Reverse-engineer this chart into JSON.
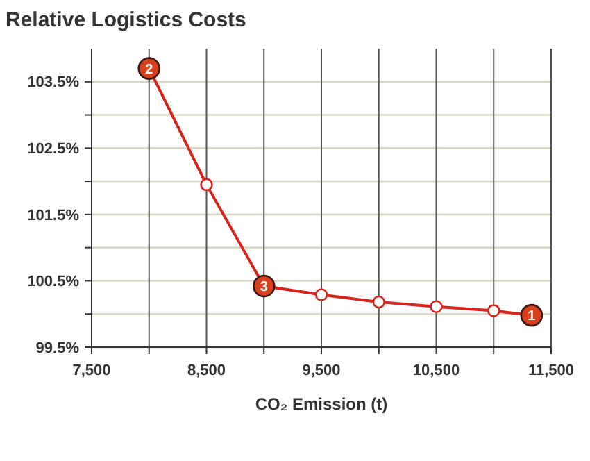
{
  "chart_data": {
    "type": "line",
    "title": "Relative Logistics Costs",
    "xlabel": "CO₂ Emission (t)",
    "x": [
      8000,
      8500,
      9000,
      9500,
      10000,
      10500,
      11000,
      11330
    ],
    "series": [
      {
        "color": "#d8231c",
        "values": [
          103.7,
          101.95,
          100.42,
          100.29,
          100.18,
          100.11,
          100.05,
          99.98
        ]
      }
    ],
    "xlim": [
      7500,
      11500
    ],
    "xticks": [
      {
        "value": 7500,
        "label": "7,500"
      },
      {
        "value": 8000,
        "label": null
      },
      {
        "value": 8500,
        "label": "8,500"
      },
      {
        "value": 9000,
        "label": null
      },
      {
        "value": 9500,
        "label": "9,500"
      },
      {
        "value": 10000,
        "label": null
      },
      {
        "value": 10500,
        "label": "10,500"
      },
      {
        "value": 11000,
        "label": null
      },
      {
        "value": 11500,
        "label": "11,500"
      }
    ],
    "ylim": [
      99.5,
      104
    ],
    "yticks": [
      {
        "value": 99.5,
        "label": "99.5%"
      },
      {
        "value": 100,
        "label": null
      },
      {
        "value": 100.5,
        "label": "100.5%"
      },
      {
        "value": 101,
        "label": null
      },
      {
        "value": 101.5,
        "label": "101.5%"
      },
      {
        "value": 102,
        "label": null
      },
      {
        "value": 102.5,
        "label": "102.5%"
      },
      {
        "value": 103,
        "label": null
      },
      {
        "value": 103.5,
        "label": "103.5%"
      }
    ],
    "grid": true,
    "marker": "circle",
    "line_style": "solid",
    "annotations": [
      {
        "text": "2",
        "x": 8000,
        "y": 103.7
      },
      {
        "text": "3",
        "x": 9000,
        "y": 100.42
      },
      {
        "text": "1",
        "x": 11330,
        "y": 99.98
      }
    ]
  }
}
